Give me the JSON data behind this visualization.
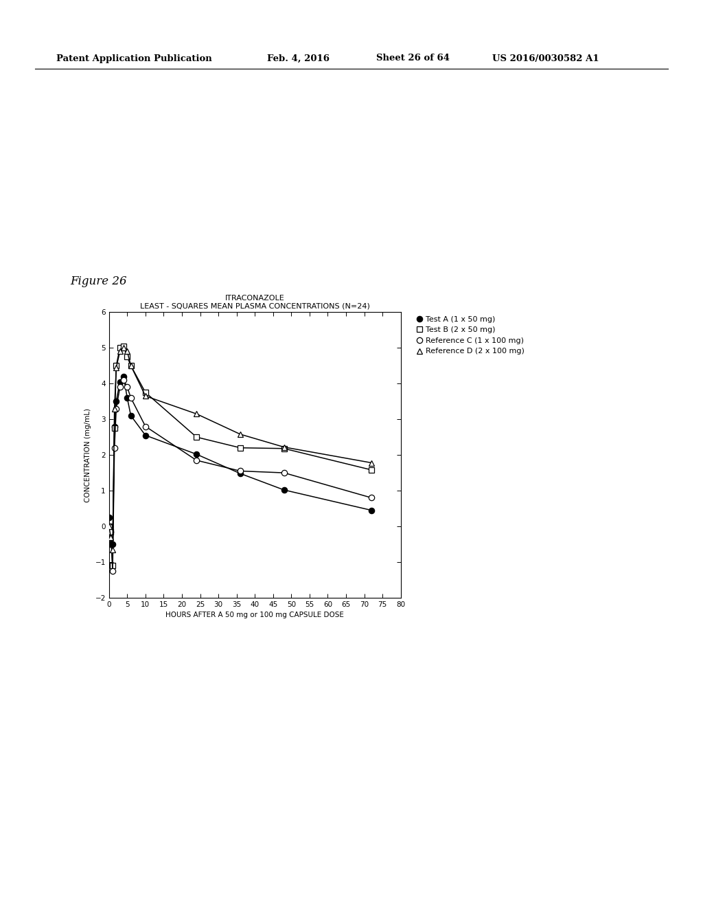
{
  "title_line1": "ITRACONAZOLE",
  "title_line2": "LEAST - SQUARES MEAN PLASMA CONCENTRATIONS (N=24)",
  "xlabel": "HOURS AFTER A 50 mg or 100 mg CAPSULE DOSE",
  "ylabel": "CONCENTRATION (mg/mL)",
  "figure_label": "Figure 26",
  "xlim": [
    0,
    80
  ],
  "ylim": [
    -2,
    6
  ],
  "xticks": [
    0,
    5,
    10,
    15,
    20,
    25,
    30,
    35,
    40,
    45,
    50,
    55,
    60,
    65,
    70,
    75,
    80
  ],
  "yticks": [
    -2,
    -1,
    0,
    1,
    2,
    3,
    4,
    5,
    6
  ],
  "series": [
    {
      "label": "Test A (1 x 50 mg)",
      "marker": "o",
      "filled": true,
      "x": [
        0,
        0.5,
        1,
        1.5,
        2,
        3,
        4,
        5,
        6,
        10,
        24,
        36,
        48,
        72
      ],
      "y": [
        0.25,
        -0.5,
        -0.5,
        2.8,
        3.5,
        4.05,
        4.2,
        3.6,
        3.1,
        2.55,
        2.02,
        1.48,
        1.02,
        0.45
      ]
    },
    {
      "label": "Test B (2 x 50 mg)",
      "marker": "s",
      "filled": false,
      "x": [
        0,
        0.5,
        1,
        1.5,
        2,
        3,
        4,
        5,
        6,
        10,
        24,
        36,
        48,
        72
      ],
      "y": [
        0.0,
        -0.15,
        -1.1,
        2.75,
        4.5,
        5.0,
        5.05,
        4.75,
        4.5,
        3.75,
        2.5,
        2.2,
        2.18,
        1.58
      ]
    },
    {
      "label": "Reference C (1 x 100 mg)",
      "marker": "o",
      "filled": false,
      "x": [
        0,
        0.5,
        1,
        1.5,
        2,
        3,
        4,
        5,
        6,
        10,
        24,
        36,
        48,
        72
      ],
      "y": [
        0.0,
        -0.15,
        -1.25,
        2.2,
        3.3,
        3.9,
        4.1,
        3.9,
        3.6,
        2.8,
        1.85,
        1.55,
        1.5,
        0.8
      ]
    },
    {
      "label": "Reference D (2 x 100 mg)",
      "marker": "^",
      "filled": false,
      "x": [
        0,
        0.5,
        1,
        1.5,
        2,
        3,
        4,
        5,
        6,
        10,
        24,
        36,
        48,
        72
      ],
      "y": [
        0.0,
        -0.3,
        -0.65,
        3.3,
        4.45,
        4.9,
        5.0,
        4.9,
        4.5,
        3.65,
        3.15,
        2.58,
        2.22,
        1.78
      ]
    }
  ],
  "header_left": "Patent Application Publication",
  "header_date": "Feb. 4, 2016",
  "header_sheet": "Sheet 26 of 64",
  "header_patent": "US 2016/0030582 A1",
  "background_color": "#ffffff",
  "font_color": "#000000",
  "markersize": 6
}
